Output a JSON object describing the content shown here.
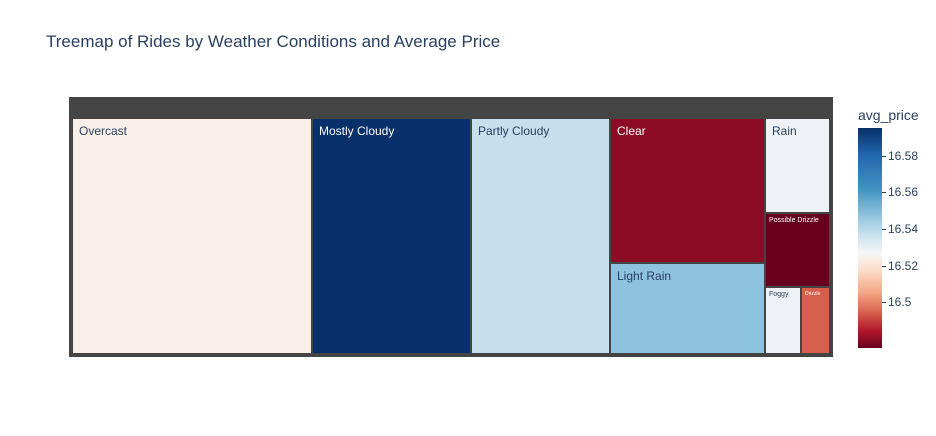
{
  "chart_data": {
    "type": "treemap",
    "title": "Treemap of Rides by Weather Conditions and Average Price",
    "colorbar": {
      "title": "avg_price",
      "ticks": [
        "16.58",
        "16.56",
        "16.54",
        "16.52",
        "16.5"
      ],
      "tick_values": [
        16.58,
        16.56,
        16.54,
        16.52,
        16.5
      ],
      "range": [
        16.475,
        16.595
      ],
      "colorscale": "RdBu"
    },
    "tiles": [
      {
        "label": "Overcast",
        "avg_price": 16.53,
        "color": "#f8efe9",
        "text_color": "#2a3f5f"
      },
      {
        "label": "Mostly Cloudy",
        "avg_price": 16.595,
        "color": "#08306b",
        "text_color": "#ffffff"
      },
      {
        "label": "Partly Cloudy",
        "avg_price": 16.555,
        "color": "#c5dfec",
        "text_color": "#2a3f5f"
      },
      {
        "label": "Clear",
        "avg_price": 16.482,
        "color": "#8b0c24",
        "text_color": "#ffffff"
      },
      {
        "label": "Light Rain",
        "avg_price": 16.57,
        "color": "#8dc3de",
        "text_color": "#2a3f5f"
      },
      {
        "label": "Rain",
        "avg_price": 16.541,
        "color": "#eef2f6",
        "text_color": "#2a3f5f"
      },
      {
        "label": "Possible Drizzle",
        "avg_price": 16.477,
        "color": "#67001f",
        "text_color": "#ffffff"
      },
      {
        "label": "Foggy",
        "avg_price": 16.541,
        "color": "#eef2f6",
        "text_color": "#2a3f5f"
      },
      {
        "label": "Drizzle",
        "avg_price": 16.505,
        "color": "#d6604d",
        "text_color": "#ffffff"
      }
    ]
  }
}
